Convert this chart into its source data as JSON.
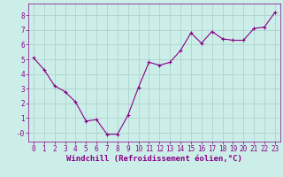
{
  "x": [
    0,
    1,
    2,
    3,
    4,
    5,
    6,
    7,
    8,
    9,
    10,
    11,
    12,
    13,
    14,
    15,
    16,
    17,
    18,
    19,
    20,
    21,
    22,
    23
  ],
  "y": [
    5.1,
    4.3,
    3.2,
    2.8,
    2.1,
    0.8,
    0.9,
    -0.1,
    -0.1,
    1.2,
    3.1,
    4.8,
    4.6,
    4.8,
    5.6,
    6.8,
    6.1,
    6.9,
    6.4,
    6.3,
    6.3,
    7.1,
    7.2,
    8.2
  ],
  "line_color": "#880088",
  "marker": "+",
  "marker_size": 3,
  "background_color": "#cceee8",
  "grid_color": "#aacccc",
  "xlabel": "Windchill (Refroidissement éolien,°C)",
  "ylim": [
    -0.6,
    8.8
  ],
  "xlim": [
    -0.5,
    23.5
  ],
  "yticks": [
    0,
    1,
    2,
    3,
    4,
    5,
    6,
    7,
    8
  ],
  "ytick_labels": [
    "-0",
    "1",
    "2",
    "3",
    "4",
    "5",
    "6",
    "7",
    "8"
  ],
  "xticks": [
    0,
    1,
    2,
    3,
    4,
    5,
    6,
    7,
    8,
    9,
    10,
    11,
    12,
    13,
    14,
    15,
    16,
    17,
    18,
    19,
    20,
    21,
    22,
    23
  ],
  "tick_label_fontsize": 5.5,
  "xlabel_fontsize": 6.5,
  "line_width": 0.8,
  "spine_color": "#880088",
  "marker_linewidth": 0.8
}
